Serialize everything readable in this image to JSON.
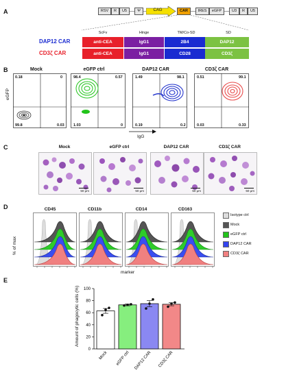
{
  "panel_labels": [
    "A",
    "B",
    "C",
    "D",
    "E"
  ],
  "colors": {
    "anti_cea": "#e8202a",
    "igg1": "#7b1fa2",
    "tm_blue": "#1a2bd1",
    "sd_green": "#7cc242",
    "cag_yellow": "#f5e000",
    "car_orange": "#f0a000",
    "mock": "#555555",
    "egfp": "#22c41a",
    "dap12": "#2233cc",
    "cd3z": "#e84848",
    "isotype": "#dddddd"
  },
  "panelA": {
    "vector": [
      "RSV",
      "R",
      "U5",
      "Ψ",
      "CAG",
      "CAR",
      "IRES",
      "eGFP",
      "U3",
      "R",
      "U5"
    ],
    "domain_headers": {
      "scfv": "ScFv",
      "hinge": "Hinge",
      "tm": "TM/Co-SD",
      "sd": "SD"
    },
    "constructs": [
      {
        "name": "DAP12 CAR",
        "scfv": "anti-CEA",
        "hinge": "IgG1",
        "tm": "2B4",
        "sd": "DAP12"
      },
      {
        "name": "CD3ζ CAR",
        "scfv": "anti-CEA",
        "hinge": "IgG1",
        "tm": "CD28",
        "sd": "CD3ζ"
      }
    ]
  },
  "panelB": {
    "ylabel": "eGFP",
    "xlabel": "IgG",
    "plots": [
      {
        "title": "Mock",
        "ul": "0.18",
        "ur": "0",
        "ll": "99.8",
        "lr": "0.03"
      },
      {
        "title": "eGFP ctrl",
        "ul": "98.4",
        "ur": "0.57",
        "ll": "1.03",
        "lr": "0"
      },
      {
        "title": "DAP12 CAR",
        "ul": "1.49",
        "ur": "98.1",
        "ll": "0.19",
        "lr": "0.2"
      },
      {
        "title": "CD3ζ CAR",
        "ul": "0.51",
        "ur": "99.1",
        "ll": "0.03",
        "lr": "0.33"
      }
    ]
  },
  "panelC": {
    "images": [
      {
        "title": "Mock",
        "scale": "50 μm"
      },
      {
        "title": "eGFP ctrl",
        "scale": "50 μm"
      },
      {
        "title": "DAP12 CAR",
        "scale": "50 μm"
      },
      {
        "title": "CD3ζ CAR",
        "scale": "50 μm"
      }
    ]
  },
  "panelD": {
    "ylabel": "% of max",
    "xlabel": "marker",
    "markers": [
      "CD45",
      "CD11b",
      "CD14",
      "CD163"
    ],
    "legend": [
      "Isotype ctrl",
      "Mock",
      "eGFP ctrl",
      "DAP12 CAR",
      "CD3ζ CAR"
    ]
  },
  "chart_data": {
    "type": "bar",
    "ylabel": "Amount of phagocytic cells (%)",
    "categories": [
      "Mock",
      "eGFP ctrl",
      "DAP12 CAR",
      "CD3ζ CAR"
    ],
    "values": [
      63,
      73,
      75,
      74
    ],
    "errors": [
      4,
      1.5,
      5,
      2.5
    ],
    "points": [
      [
        56,
        65,
        68
      ],
      [
        72,
        73,
        74
      ],
      [
        67,
        75,
        82
      ],
      [
        70,
        75,
        77
      ]
    ],
    "ylim": [
      0,
      100
    ],
    "yticks": [
      "0",
      "20",
      "40",
      "60",
      "80",
      "100"
    ],
    "bar_colors": [
      "#ffffff",
      "#86ee7e",
      "#8a88f2",
      "#f28888"
    ]
  }
}
